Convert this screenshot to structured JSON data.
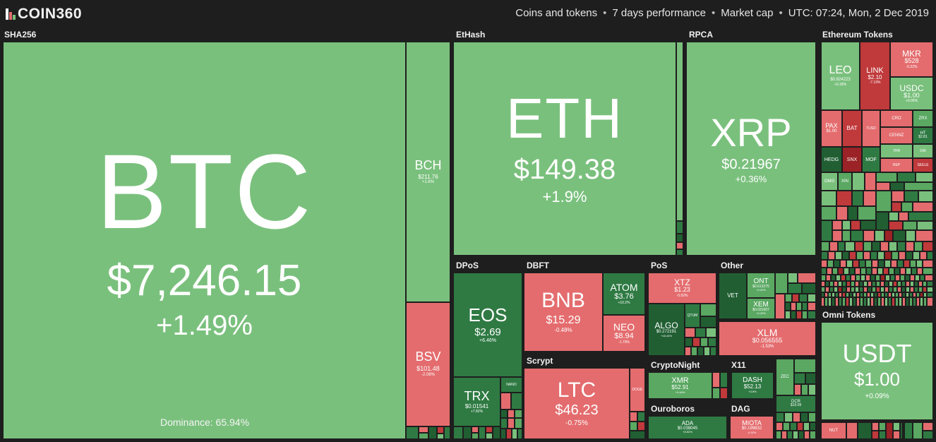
{
  "header": {
    "logo_text": "COIN360",
    "filter_coins": "Coins and tokens",
    "filter_period": "7 days performance",
    "filter_metric": "Market cap",
    "timestamp": "UTC: 07:24, Mon, 2 Dec 2019",
    "separator": "•"
  },
  "groups": {
    "sha256": "SHA256",
    "ethash": "EtHash",
    "rpca": "RPCA",
    "ethereum_tokens": "Ethereum Tokens",
    "dpos": "DPoS",
    "dbft": "DBFT",
    "pos": "PoS",
    "other": "Other",
    "scrypt": "Scrypt",
    "cryptonight": "CryptoNight",
    "x11": "X11",
    "ouroboros": "Ouroboros",
    "dag": "DAG",
    "omni_tokens": "Omni Tokens"
  },
  "coins": {
    "btc": {
      "symbol": "BTC",
      "price": "$7,246.15",
      "change": "+1.49%"
    },
    "bch": {
      "symbol": "BCH",
      "price": "$211.76",
      "change": "+1.6%"
    },
    "bsv": {
      "symbol": "BSV",
      "price": "$101.48",
      "change": "-2.08%"
    },
    "eth": {
      "symbol": "ETH",
      "price": "$149.38",
      "change": "+1.9%"
    },
    "xrp": {
      "symbol": "XRP",
      "price": "$0.21967",
      "change": "+0.36%"
    },
    "leo": {
      "symbol": "LEO",
      "price": "$0.924223",
      "change": "+0.18%"
    },
    "link": {
      "symbol": "LINK",
      "price": "$2.10",
      "change": "-7.19%"
    },
    "mkr": {
      "symbol": "MKR",
      "price": "$528",
      "change": "-5.32%"
    },
    "usdc": {
      "symbol": "USDC",
      "price": "$1.00",
      "change": "+0.09%"
    },
    "pax": {
      "symbol": "PAX",
      "price": "$1.00"
    },
    "bat": {
      "symbol": "BAT"
    },
    "tusd": {
      "symbol": "TUSD"
    },
    "cro": {
      "symbol": "CRO"
    },
    "zrx": {
      "symbol": "ZRX"
    },
    "cennz": {
      "symbol": "CENNZ"
    },
    "ht": {
      "symbol": "HT",
      "price": "$2.81"
    },
    "hedg": {
      "symbol": "HEDG"
    },
    "snx": {
      "symbol": "SNX"
    },
    "mof": {
      "symbol": "MOF"
    },
    "thr": {
      "symbol": "THR"
    },
    "dai": {
      "symbol": "DAI"
    },
    "rep": {
      "symbol": "REP"
    },
    "seele": {
      "symbol": "SEELE"
    },
    "omg": {
      "symbol": "OMG"
    },
    "xin": {
      "symbol": "XIN"
    },
    "eos": {
      "symbol": "EOS",
      "price": "$2.69",
      "change": "+6.46%"
    },
    "trx": {
      "symbol": "TRX",
      "price": "$0.01541",
      "change": "+7.82%"
    },
    "nano": {
      "symbol": "NANO"
    },
    "bnb": {
      "symbol": "BNB",
      "price": "$15.29",
      "change": "-0.48%"
    },
    "atom": {
      "symbol": "ATOM",
      "price": "$3.76",
      "change": "+10.2%"
    },
    "neo": {
      "symbol": "NEO",
      "price": "$8.94",
      "change": "-1.79%"
    },
    "xtz": {
      "symbol": "XTZ",
      "price": "$1.23",
      "change": "-0.92%"
    },
    "algo": {
      "symbol": "ALGO",
      "price": "$0.272191",
      "change": "+18.44%"
    },
    "qtum": {
      "symbol": "QTUM"
    },
    "vet": {
      "symbol": "VET"
    },
    "ont": {
      "symbol": "ONT",
      "price": "$0.613275",
      "change": "+4.22%"
    },
    "xem": {
      "symbol": "XEM",
      "price": "$0.031607",
      "change": "+4.23%"
    },
    "xlm": {
      "symbol": "XLM",
      "price": "$0.056555",
      "change": "-1.53%"
    },
    "ltc": {
      "symbol": "LTC",
      "price": "$46.23",
      "change": "-0.75%"
    },
    "doge": {
      "symbol": "DOGE"
    },
    "xmr": {
      "symbol": "XMR",
      "price": "$52.91",
      "change": "+9.44%"
    },
    "dash": {
      "symbol": "DASH",
      "price": "$52.13",
      "change": "+3.6%"
    },
    "zec": {
      "symbol": "ZEC"
    },
    "dcr": {
      "symbol": "DCR",
      "price": "$19.09"
    },
    "ada": {
      "symbol": "ADA",
      "price": "$0.038045",
      "change": "+8.52%"
    },
    "miota": {
      "symbol": "MIOTA",
      "price": "$0.199832",
      "change": "-4.32%"
    },
    "usdt": {
      "symbol": "USDT",
      "price": "$1.00",
      "change": "+0.09%"
    },
    "nut": {
      "symbol": "NUT"
    }
  },
  "dominance": "Dominance: 65.94%",
  "colors": {
    "gain": "#7ac07d",
    "gain_strong": "#2f7a43",
    "loss": "#e46c6e",
    "loss_strong": "#c0393b",
    "background": "#1e1e1e"
  }
}
